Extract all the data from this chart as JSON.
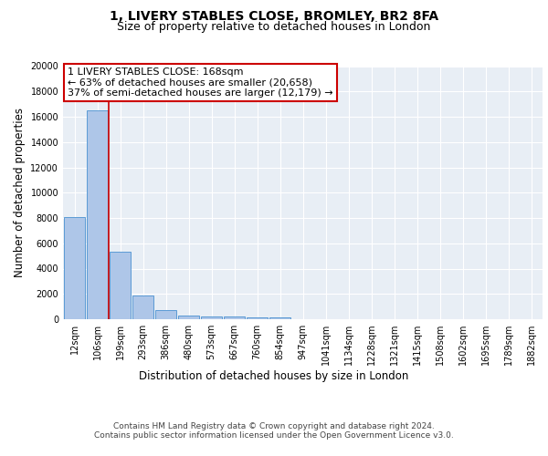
{
  "title": "1, LIVERY STABLES CLOSE, BROMLEY, BR2 8FA",
  "subtitle": "Size of property relative to detached houses in London",
  "xlabel": "Distribution of detached houses by size in London",
  "ylabel": "Number of detached properties",
  "bin_labels": [
    "12sqm",
    "106sqm",
    "199sqm",
    "293sqm",
    "386sqm",
    "480sqm",
    "573sqm",
    "667sqm",
    "760sqm",
    "854sqm",
    "947sqm",
    "1041sqm",
    "1134sqm",
    "1228sqm",
    "1321sqm",
    "1415sqm",
    "1508sqm",
    "1602sqm",
    "1695sqm",
    "1789sqm",
    "1882sqm"
  ],
  "bar_heights": [
    8100,
    16500,
    5300,
    1850,
    700,
    320,
    230,
    200,
    160,
    140,
    0,
    0,
    0,
    0,
    0,
    0,
    0,
    0,
    0,
    0,
    0
  ],
  "bar_color": "#aec6e8",
  "bar_edge_color": "#5b9bd5",
  "background_color": "#e8eef5",
  "grid_color": "#ffffff",
  "annotation_box_text": "1 LIVERY STABLES CLOSE: 168sqm\n← 63% of detached houses are smaller (20,658)\n37% of semi-detached houses are larger (12,179) →",
  "annotation_box_color": "#cc0000",
  "vline_x": 1.5,
  "vline_color": "#cc0000",
  "ylim": [
    0,
    20000
  ],
  "yticks": [
    0,
    2000,
    4000,
    6000,
    8000,
    10000,
    12000,
    14000,
    16000,
    18000,
    20000
  ],
  "footer_text": "Contains HM Land Registry data © Crown copyright and database right 2024.\nContains public sector information licensed under the Open Government Licence v3.0.",
  "title_fontsize": 10,
  "subtitle_fontsize": 9,
  "axis_label_fontsize": 8.5,
  "tick_fontsize": 7,
  "annotation_fontsize": 8,
  "footer_fontsize": 6.5
}
